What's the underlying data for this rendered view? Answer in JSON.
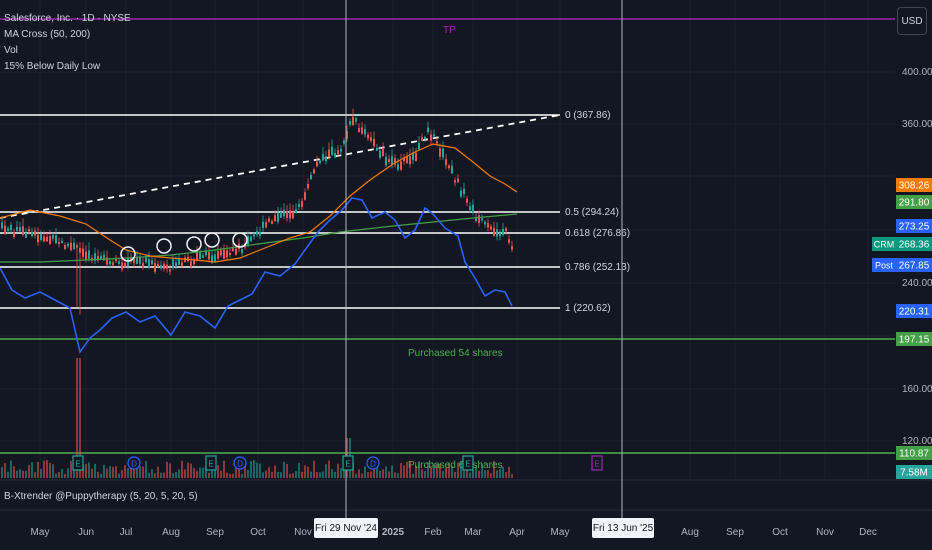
{
  "header": {
    "symbol_line": "Salesforce, Inc. · 1D · NYSE",
    "indicators": [
      "MA Cross (50, 200)",
      "Vol",
      "15% Below Daily Low"
    ],
    "currency_button": "USD"
  },
  "subpane": {
    "title": "B-Xtrender @Puppytherapy (5, 20, 5, 20, 5)"
  },
  "crosshair": {
    "date_a": "Fri 29 Nov '24",
    "date_b": "Fri 13 Jun '25"
  },
  "chart_data": {
    "type": "candlestick",
    "price_axis": {
      "labels": [
        "400.00",
        "360.00",
        "240.00",
        "160.00",
        "120.00"
      ]
    },
    "time_axis": {
      "labels": [
        "May",
        "Jun",
        "Jul",
        "Aug",
        "Sep",
        "Oct",
        "Nov",
        "2025",
        "Feb",
        "Mar",
        "Apr",
        "May",
        "Aug",
        "Sep",
        "Oct",
        "Nov",
        "Dec"
      ]
    },
    "fib_levels": [
      {
        "label": "0 (367.86)",
        "value": 367.86
      },
      {
        "label": "0.5 (294.24)",
        "value": 294.24
      },
      {
        "label": "0.618 (276.86)",
        "value": 276.86
      },
      {
        "label": "0.786 (252.13)",
        "value": 252.13
      },
      {
        "label": "1 (220.62)",
        "value": 220.62
      }
    ],
    "horizontal_lines": [
      {
        "label": "TP",
        "color": "#9c27b0"
      },
      {
        "label": "Purchased 54 shares",
        "color": "#4caf50"
      },
      {
        "label": "Purchased 65 shares",
        "color": "#4caf50"
      }
    ],
    "price_tags": [
      {
        "text": "308.26",
        "color": "#f57c00"
      },
      {
        "text": "291.80",
        "color": "#43a047"
      },
      {
        "text": "273.25",
        "color": "#2962ff"
      },
      {
        "text": "268.36",
        "color": "#089981",
        "prefix": "CRM"
      },
      {
        "text": "267.85",
        "color": "#2962ff",
        "prefix": "Post"
      },
      {
        "text": "220.31",
        "color": "#2962ff"
      },
      {
        "text": "197.15",
        "color": "#43a047"
      },
      {
        "text": "110.87",
        "color": "#43a047"
      },
      {
        "text": "7.58M",
        "color": "#26a69a"
      }
    ],
    "event_markers": [
      "E",
      "D",
      "E",
      "D",
      "E",
      "D",
      "E",
      "E"
    ],
    "series": [
      {
        "name": "MA 50",
        "color": "#f57c00"
      },
      {
        "name": "MA 200",
        "color": "#43a047"
      },
      {
        "name": "15% Below Daily Low",
        "color": "#2962ff"
      }
    ]
  }
}
